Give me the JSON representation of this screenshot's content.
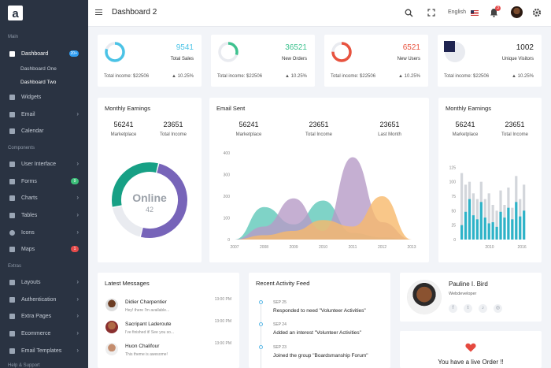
{
  "app": {
    "logo_letter": "a"
  },
  "sidebar": {
    "sections": {
      "main": "Main",
      "components": "Components",
      "extras": "Extras",
      "help": "Help & Support"
    },
    "dashboard": {
      "label": "Dashboard",
      "badge": "20+"
    },
    "dashboard_subs": [
      "Dashboard One",
      "Dashboard Two"
    ],
    "main_items": [
      {
        "label": "Widgets",
        "icon": "widgets-icon"
      },
      {
        "label": "Email",
        "icon": "email-icon",
        "chevron": "›"
      },
      {
        "label": "Calendar",
        "icon": "calendar-icon"
      }
    ],
    "component_items": [
      {
        "label": "User Interface",
        "icon": "layers-icon",
        "chevron": "›"
      },
      {
        "label": "Forms",
        "icon": "forms-icon",
        "badge": "9"
      },
      {
        "label": "Charts",
        "icon": "charts-icon",
        "chevron": "›"
      },
      {
        "label": "Tables",
        "icon": "tables-icon",
        "chevron": "›"
      },
      {
        "label": "Icons",
        "icon": "icons-icon",
        "chevron": "›"
      },
      {
        "label": "Maps",
        "icon": "maps-icon",
        "badge": "1"
      }
    ],
    "extra_items": [
      {
        "label": "Layouts",
        "icon": "layouts-icon",
        "chevron": "›"
      },
      {
        "label": "Authentication",
        "icon": "auth-icon",
        "chevron": "›"
      },
      {
        "label": "Extra Pages",
        "icon": "pages-icon",
        "chevron": "›"
      },
      {
        "label": "Ecommerce",
        "icon": "cart-icon",
        "chevron": "›"
      },
      {
        "label": "Email Templates",
        "icon": "template-icon",
        "chevron": "›"
      }
    ],
    "colors": {
      "badge_blue": "#2f9ef2",
      "badge_green": "#3dbf7a",
      "badge_red": "#e54b4b"
    }
  },
  "topbar": {
    "title": "Dashboard 2",
    "language": "English",
    "notification_count": "3"
  },
  "stats": [
    {
      "value": "9541",
      "label": "Total Sales",
      "income": "Total income: $22506",
      "pct": "10.25%",
      "color": "#4bc3e6",
      "fraction": 0.8
    },
    {
      "value": "36521",
      "label": "New Orders",
      "income": "Total income: $22506",
      "pct": "10.25%",
      "color": "#3ec28f",
      "fraction": 0.3
    },
    {
      "value": "6521",
      "label": "New Users",
      "income": "Total income: $22506",
      "pct": "10.25%",
      "color": "#e8533f",
      "fraction": 0.75
    },
    {
      "value": "1002",
      "label": "Unique Visitors",
      "income": "Total income: $22506",
      "pct": "10.25%",
      "color": "#1f2450",
      "fraction": 0.25
    }
  ],
  "earnings_left": {
    "title": "Monthly Earnings",
    "stats": [
      {
        "value": "56241",
        "label": "Marketplace"
      },
      {
        "value": "23651",
        "label": "Total Income"
      }
    ],
    "donut_label": "Online",
    "donut_value": "42",
    "segments": [
      {
        "color": "#7764b9",
        "fraction": 0.5
      },
      {
        "color": "#e9ebf0",
        "fraction": 0.18
      },
      {
        "color": "#17a085",
        "fraction": 0.32
      }
    ]
  },
  "email_sent": {
    "title": "Email Sent",
    "stats": [
      {
        "value": "56241",
        "label": "Marketplace"
      },
      {
        "value": "23651",
        "label": "Total Income"
      },
      {
        "value": "23651",
        "label": "Last Month"
      }
    ]
  },
  "earnings_right": {
    "title": "Monthly Earnings",
    "stats": [
      {
        "value": "56241",
        "label": "Marketplace"
      },
      {
        "value": "23651",
        "label": "Total Income"
      }
    ]
  },
  "chart_data": [
    {
      "type": "area",
      "x": [
        2007,
        2008,
        2009,
        2010,
        2011,
        2012,
        2013
      ],
      "ylim": [
        0,
        400
      ],
      "yticks": [
        0,
        100,
        200,
        300,
        400
      ],
      "series": [
        {
          "color": "#5fc8b9",
          "values": [
            0,
            150,
            70,
            180,
            30,
            10,
            0
          ]
        },
        {
          "color": "#b79bc7",
          "values": [
            0,
            60,
            190,
            40,
            380,
            80,
            0
          ]
        },
        {
          "color": "#f7b96b",
          "values": [
            0,
            20,
            40,
            90,
            60,
            200,
            0
          ]
        }
      ]
    },
    {
      "type": "bar",
      "x_tick_labels": [
        "2010",
        "2016"
      ],
      "ylim": [
        0,
        150
      ],
      "yticks": [
        0,
        25,
        50,
        75,
        100,
        125
      ],
      "series": [
        {
          "color": "#2eb3c8",
          "values": [
            25,
            48,
            70,
            42,
            35,
            65,
            38,
            28,
            30,
            22,
            48,
            38,
            55,
            35,
            65,
            40,
            50
          ]
        },
        {
          "color": "#d3d6db",
          "values": [
            115,
            95,
            100,
            80,
            70,
            100,
            70,
            80,
            60,
            50,
            85,
            60,
            90,
            55,
            110,
            70,
            95
          ]
        }
      ]
    }
  ],
  "messages": {
    "title": "Latest Messages",
    "items": [
      {
        "name": "Didier Charpentier",
        "text": "Hey! there I'm available...",
        "time": "13:00 PM"
      },
      {
        "name": "Sacripant Laderoute",
        "text": "I've finished it! See you so...",
        "time": "13:00 PM"
      },
      {
        "name": "Huon Chalifour",
        "text": "This theme is awesome!",
        "time": "13:00 PM"
      }
    ]
  },
  "activity": {
    "title": "Recent Activity Feed",
    "items": [
      {
        "date": "SEP 25",
        "text": "Responded to need \"Volunteer Activities\""
      },
      {
        "date": "SEP 24",
        "text": "Added an interest \"Volunteer Activities\""
      },
      {
        "date": "SEP 23",
        "text": "Joined the group \"Boardsmanship Forum\""
      }
    ]
  },
  "profile": {
    "name": "Pauline I. Bird",
    "role": "Webdeveloper",
    "social": [
      "f",
      "t",
      "♪",
      "◎"
    ]
  },
  "live_order": {
    "text": "You have a live Order !!"
  }
}
